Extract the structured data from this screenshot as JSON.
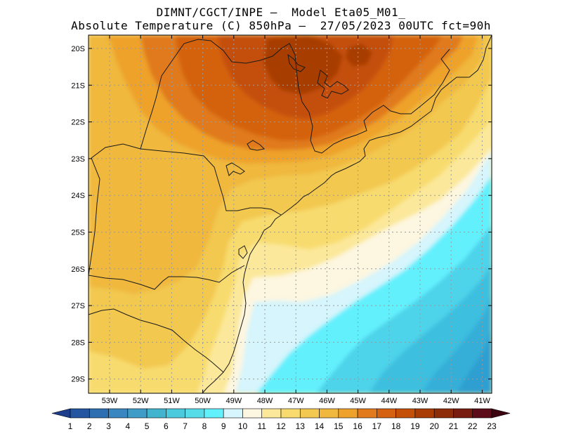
{
  "header": {
    "line1": "DIMNT/CGCT/INPE –  Model Eta05_M01_",
    "line2": "Absolute Temperature (C) 850hPa –  27/05/2023 00UTC fct=90h"
  },
  "map": {
    "lat_labels": [
      "20S",
      "21S",
      "22S",
      "23S",
      "24S",
      "25S",
      "26S",
      "27S",
      "28S",
      "29S"
    ],
    "lon_labels": [
      "53W",
      "52W",
      "51W",
      "50W",
      "49W",
      "48W",
      "47W",
      "46W",
      "45W",
      "44W",
      "43W",
      "42W",
      "41W"
    ],
    "field": "Absolute Temperature (C) 850hPa",
    "colors": {
      "t13": "#fbe89a",
      "t14": "#f8db6e",
      "t15": "#f2c850",
      "t16": "#f0b83e",
      "t17": "#eea22c",
      "t18": "#e07a1c",
      "t19": "#d46210",
      "t20": "#c45008",
      "t21": "#a83c04",
      "t12": "#fdf6e0",
      "t11": "#d6f5fc",
      "t10": "#63f0fd",
      "t9": "#4ed3ea",
      "t8": "#3ebfdf",
      "t7": "#36aed8",
      "t6": "#2f9fd0"
    }
  },
  "colorbar": {
    "labels": [
      "1",
      "2",
      "3",
      "4",
      "5",
      "6",
      "7",
      "8",
      "9",
      "10",
      "11",
      "12",
      "13",
      "14",
      "15",
      "16",
      "17",
      "18",
      "19",
      "20",
      "21",
      "22",
      "23"
    ],
    "colors": [
      "#1c3c8c",
      "#2455a0",
      "#2e6fb2",
      "#3a86c0",
      "#3e9cc6",
      "#43b4ce",
      "#4ccadd",
      "#55dce8",
      "#63f0fd",
      "#d6f5fc",
      "#fdf6e0",
      "#fbe89a",
      "#f8db6e",
      "#f2c850",
      "#f0b83e",
      "#eea22c",
      "#e07a1c",
      "#d46210",
      "#c45008",
      "#a83c04",
      "#8c2c08",
      "#781c10",
      "#5c0c18",
      "#3c0410"
    ]
  }
}
